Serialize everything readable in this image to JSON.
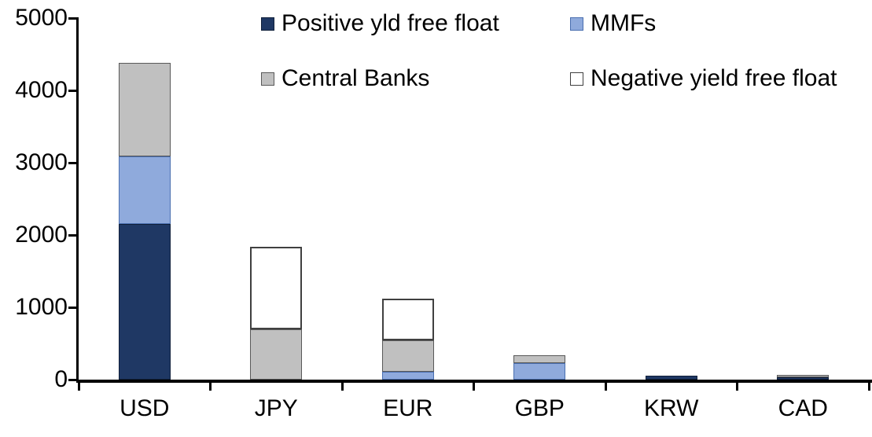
{
  "chart_data": {
    "type": "bar",
    "stacked": true,
    "title": "",
    "categories": [
      "USD",
      "JPY",
      "EUR",
      "GBP",
      "KRW",
      "CAD"
    ],
    "series": [
      {
        "name": "Positive yld free float",
        "color": "#1F3864",
        "border_color": "#10203B",
        "border_width": 1,
        "values": [
          2150,
          0,
          0,
          0,
          50,
          35
        ]
      },
      {
        "name": "MMFs",
        "color": "#8FAADC",
        "border_color": "#4A6FB0",
        "border_width": 1,
        "values": [
          940,
          0,
          110,
          230,
          0,
          0
        ]
      },
      {
        "name": "Central Banks",
        "color": "#C0C0C0",
        "border_color": "#595959",
        "border_width": 1,
        "values": [
          1290,
          700,
          435,
          105,
          0,
          30
        ]
      },
      {
        "name": "Negative yield free float",
        "color": "#FFFFFF",
        "border_color": "#404040",
        "border_width": 2,
        "values": [
          0,
          1140,
          575,
          0,
          0,
          0
        ]
      }
    ],
    "y_axis": {
      "min": 0,
      "max": 5000,
      "tick_interval": 1000,
      "tick_labels": [
        "0",
        "1000",
        "2000",
        "3000",
        "4000",
        "5000"
      ]
    },
    "legend_position": "top",
    "legend_columns": 2,
    "grid": false,
    "axis_color": "#000000",
    "text_color": "#000000",
    "background_color": "#FFFFFF"
  }
}
